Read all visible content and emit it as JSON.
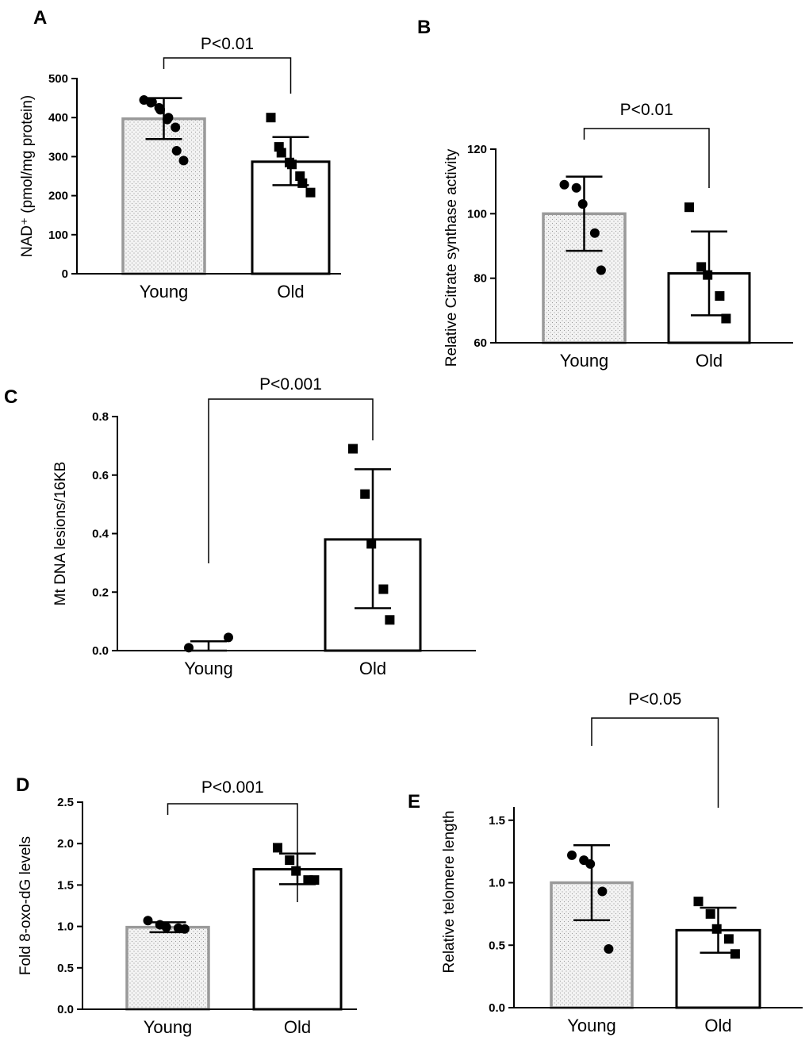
{
  "chart_data": [
    {
      "panel": "A",
      "type": "bar",
      "ylabel": "NAD⁺ (pmol/mg protein)",
      "categories": [
        "Young",
        "Old"
      ],
      "values": [
        397,
        287
      ],
      "error_bars": [
        {
          "lower": 345,
          "upper": 450
        },
        {
          "lower": 227,
          "upper": 350
        }
      ],
      "points": [
        [
          445,
          438,
          440,
          425,
          420,
          395,
          400,
          375,
          315,
          290
        ],
        [
          400,
          325,
          310,
          285,
          280,
          250,
          232,
          208
        ]
      ],
      "yticks": [
        "0",
        "100",
        "200",
        "300",
        "400",
        "500"
      ],
      "ylim": [
        0,
        500
      ],
      "pvalue": "P<0.01"
    },
    {
      "panel": "B",
      "type": "bar",
      "ylabel": "Relative Citrate synthase  activity",
      "categories": [
        "Young",
        "Old"
      ],
      "values": [
        100,
        81.5
      ],
      "error_bars": [
        {
          "lower": 88.5,
          "upper": 111.5
        },
        {
          "lower": 68.5,
          "upper": 94.5
        }
      ],
      "points": [
        [
          109,
          108,
          103,
          94,
          82.5
        ],
        [
          102,
          83.5,
          81,
          74.5,
          67.5
        ]
      ],
      "yticks": [
        "60",
        "80",
        "100",
        "120"
      ],
      "ylim": [
        60,
        120
      ],
      "pvalue": "P<0.01"
    },
    {
      "panel": "C",
      "type": "bar",
      "ylabel": "Mt DNA lesions/16KB",
      "categories": [
        "Young",
        "Old"
      ],
      "values": [
        0.0,
        0.38
      ],
      "error_bars": [
        {
          "lower": 0.0,
          "upper": 0.032
        },
        {
          "lower": 0.145,
          "upper": 0.62
        }
      ],
      "points": [
        [
          0.01,
          0.045
        ],
        [
          0.69,
          0.535,
          0.365,
          0.21,
          0.105
        ]
      ],
      "yticks": [
        "0.0",
        "0.2",
        "0.4",
        "0.6",
        "0.8"
      ],
      "ylim": [
        0,
        0.8
      ],
      "pvalue": "P<0.001"
    },
    {
      "panel": "D",
      "type": "bar",
      "ylabel": "Fold 8-oxo-dG levels",
      "categories": [
        "Young",
        "Old"
      ],
      "values": [
        0.99,
        1.69
      ],
      "error_bars": [
        {
          "lower": 0.93,
          "upper": 1.05
        },
        {
          "lower": 1.51,
          "upper": 1.88
        }
      ],
      "points": [
        [
          1.07,
          1.02,
          0.99,
          0.98,
          0.97
        ],
        [
          1.95,
          1.8,
          1.67,
          1.56,
          1.56
        ]
      ],
      "yticks": [
        "0.0",
        "0.5",
        "1.0",
        "1.5",
        "2.0",
        "2.5"
      ],
      "ylim": [
        0,
        2.5
      ],
      "pvalue": "P<0.001"
    },
    {
      "panel": "E",
      "type": "bar",
      "ylabel": "Relative telomere length",
      "categories": [
        "Young",
        "Old"
      ],
      "values": [
        1.0,
        0.62
      ],
      "error_bars": [
        {
          "lower": 0.7,
          "upper": 1.3
        },
        {
          "lower": 0.44,
          "upper": 0.8
        }
      ],
      "points": [
        [
          1.22,
          1.18,
          1.15,
          0.93,
          0.47
        ],
        [
          0.85,
          0.75,
          0.63,
          0.55,
          0.43
        ]
      ],
      "yticks": [
        "0.0",
        "0.5",
        "1.0",
        "1.5"
      ],
      "ylim": [
        0,
        1.6
      ],
      "pvalue": "P<0.05"
    }
  ]
}
